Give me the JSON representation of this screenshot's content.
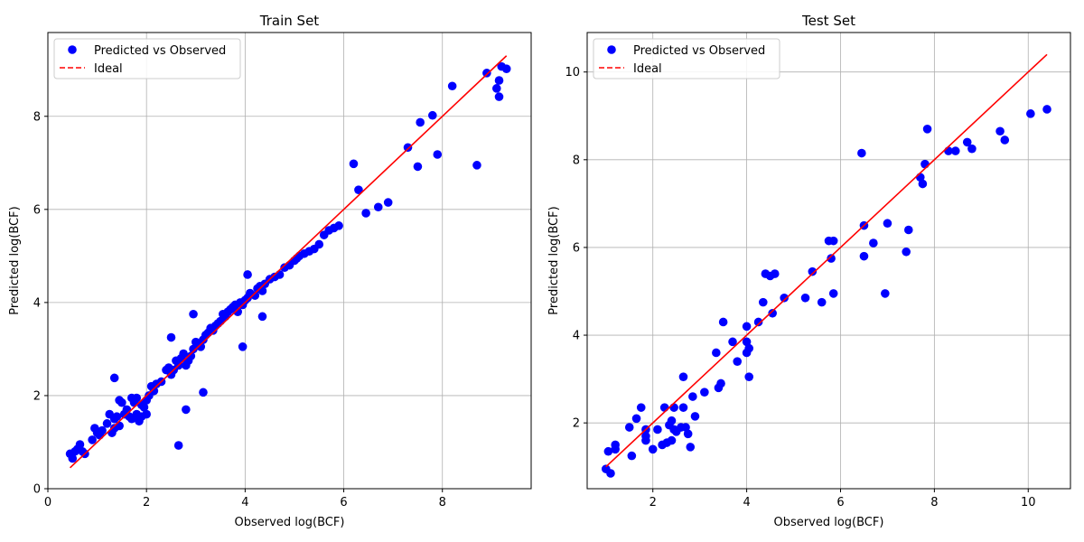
{
  "chart_data": [
    {
      "type": "scatter",
      "title": "Train Set",
      "xlabel": "Observed log(BCF)",
      "ylabel": "Predicted log(BCF)",
      "xlim": [
        0,
        9.8
      ],
      "ylim": [
        0,
        9.8
      ],
      "xticks": [
        0,
        2,
        4,
        6,
        8
      ],
      "yticks": [
        0,
        2,
        4,
        6,
        8
      ],
      "grid": true,
      "legend_position": "top-left",
      "legend": [
        "Predicted vs Observed",
        "Ideal"
      ],
      "colors": {
        "points": "#0000ff",
        "ideal": "#ff0000"
      },
      "ideal_line": {
        "x": [
          0.45,
          9.3
        ],
        "y": [
          0.45,
          9.3
        ]
      },
      "series": [
        {
          "name": "Predicted vs Observed",
          "x": [
            0.45,
            0.5,
            0.55,
            0.6,
            0.65,
            0.7,
            0.75,
            0.9,
            0.95,
            1.0,
            1.05,
            1.1,
            1.2,
            1.25,
            1.3,
            1.35,
            1.35,
            1.4,
            1.45,
            1.45,
            1.5,
            1.55,
            1.6,
            1.65,
            1.7,
            1.7,
            1.75,
            1.8,
            1.8,
            1.85,
            1.9,
            1.9,
            1.95,
            2.0,
            2.0,
            2.05,
            2.1,
            2.15,
            2.2,
            2.3,
            2.4,
            2.45,
            2.5,
            2.55,
            2.6,
            2.65,
            2.7,
            2.75,
            2.8,
            2.85,
            2.9,
            2.95,
            3.0,
            3.05,
            3.1,
            3.15,
            3.2,
            3.25,
            3.3,
            3.35,
            3.4,
            3.45,
            3.5,
            3.55,
            3.6,
            3.65,
            3.7,
            3.75,
            3.8,
            3.85,
            3.9,
            3.95,
            4.0,
            4.05,
            4.1,
            4.2,
            4.25,
            4.3,
            4.35,
            4.4,
            4.5,
            4.6,
            4.7,
            4.8,
            4.9,
            5.0,
            5.05,
            5.1,
            5.2,
            5.3,
            5.4,
            5.5,
            5.6,
            5.7,
            5.8,
            5.9,
            2.65,
            2.8,
            3.15,
            3.95,
            4.05,
            4.35,
            1.35,
            2.5,
            2.95,
            6.2,
            6.3,
            6.45,
            6.7,
            6.9,
            7.3,
            7.5,
            7.55,
            7.8,
            7.9,
            8.2,
            8.7,
            8.9,
            9.1,
            9.15,
            9.15,
            9.2,
            9.3
          ],
          "y": [
            0.75,
            0.65,
            0.8,
            0.85,
            0.95,
            0.8,
            0.75,
            1.05,
            1.3,
            1.2,
            1.15,
            1.25,
            1.4,
            1.6,
            1.2,
            1.5,
            1.3,
            1.55,
            1.35,
            1.9,
            1.85,
            1.6,
            1.7,
            1.55,
            1.95,
            1.5,
            1.85,
            1.6,
            1.95,
            1.45,
            1.8,
            1.55,
            1.75,
            1.9,
            1.6,
            2.0,
            2.2,
            2.1,
            2.25,
            2.3,
            2.55,
            2.6,
            2.45,
            2.55,
            2.75,
            2.65,
            2.8,
            2.9,
            2.65,
            2.75,
            2.85,
            3.0,
            3.15,
            3.1,
            3.05,
            3.2,
            3.3,
            3.35,
            3.45,
            3.4,
            3.5,
            3.55,
            3.6,
            3.75,
            3.7,
            3.8,
            3.85,
            3.9,
            3.95,
            3.8,
            4.0,
            3.95,
            4.05,
            4.1,
            4.2,
            4.15,
            4.3,
            4.35,
            4.25,
            4.4,
            4.5,
            4.55,
            4.6,
            4.75,
            4.8,
            4.9,
            4.95,
            5.0,
            5.05,
            5.1,
            5.15,
            5.25,
            5.45,
            5.55,
            5.6,
            5.65,
            0.93,
            1.7,
            2.07,
            3.05,
            4.6,
            3.7,
            2.38,
            3.25,
            3.75,
            6.98,
            6.42,
            5.92,
            6.05,
            6.15,
            7.33,
            6.92,
            7.87,
            8.02,
            7.18,
            8.65,
            6.95,
            8.93,
            8.6,
            8.42,
            8.77,
            9.07,
            9.02
          ]
        }
      ]
    },
    {
      "type": "scatter",
      "title": "Test Set",
      "xlabel": "Observed log(BCF)",
      "ylabel": "Predicted log(BCF)",
      "xlim": [
        0.6,
        10.9
      ],
      "ylim": [
        0.5,
        10.9
      ],
      "xticks": [
        2,
        4,
        6,
        8,
        10
      ],
      "yticks": [
        2,
        4,
        6,
        8,
        10
      ],
      "grid": true,
      "legend_position": "top-left",
      "legend": [
        "Predicted vs Observed",
        "Ideal"
      ],
      "colors": {
        "points": "#0000ff",
        "ideal": "#ff0000"
      },
      "ideal_line": {
        "x": [
          1.0,
          10.4
        ],
        "y": [
          1.0,
          10.4
        ]
      },
      "series": [
        {
          "name": "Predicted vs Observed",
          "x": [
            1.0,
            1.05,
            1.1,
            1.2,
            1.2,
            1.5,
            1.55,
            1.65,
            1.75,
            1.85,
            1.85,
            1.85,
            2.0,
            2.1,
            2.2,
            2.25,
            2.3,
            2.35,
            2.4,
            2.4,
            2.45,
            2.45,
            2.5,
            2.6,
            2.65,
            2.65,
            2.7,
            2.75,
            2.8,
            2.85,
            2.9,
            3.1,
            3.35,
            3.4,
            3.45,
            3.5,
            3.7,
            3.8,
            4.0,
            4.0,
            4.0,
            4.05,
            4.05,
            4.25,
            4.35,
            4.4,
            4.5,
            4.55,
            4.6,
            4.8,
            5.25,
            5.4,
            5.6,
            5.75,
            5.8,
            5.85,
            6.45,
            6.5,
            6.5,
            6.7,
            7.0,
            7.4,
            7.45,
            7.7,
            7.75,
            7.8,
            7.85,
            8.3,
            8.45,
            8.7,
            8.8,
            9.4,
            9.5,
            10.05,
            10.4,
            5.85,
            6.95
          ],
          "y": [
            0.95,
            1.35,
            0.85,
            1.5,
            1.4,
            1.9,
            1.25,
            2.1,
            2.35,
            1.85,
            1.7,
            1.6,
            1.4,
            1.85,
            1.5,
            2.35,
            1.55,
            1.95,
            2.05,
            1.6,
            1.85,
            2.35,
            1.8,
            1.9,
            3.05,
            2.35,
            1.9,
            1.75,
            1.45,
            2.6,
            2.15,
            2.7,
            3.6,
            2.8,
            2.9,
            4.3,
            3.85,
            3.4,
            4.2,
            3.85,
            3.6,
            3.7,
            3.05,
            4.3,
            4.75,
            5.4,
            5.35,
            4.5,
            5.4,
            4.85,
            4.85,
            5.45,
            4.75,
            6.15,
            5.75,
            6.15,
            8.15,
            6.5,
            5.8,
            6.1,
            6.55,
            5.9,
            6.4,
            7.6,
            7.45,
            7.9,
            8.7,
            8.2,
            8.2,
            8.4,
            8.25,
            8.65,
            8.45,
            9.05,
            9.15,
            4.95,
            4.95
          ]
        }
      ]
    }
  ]
}
